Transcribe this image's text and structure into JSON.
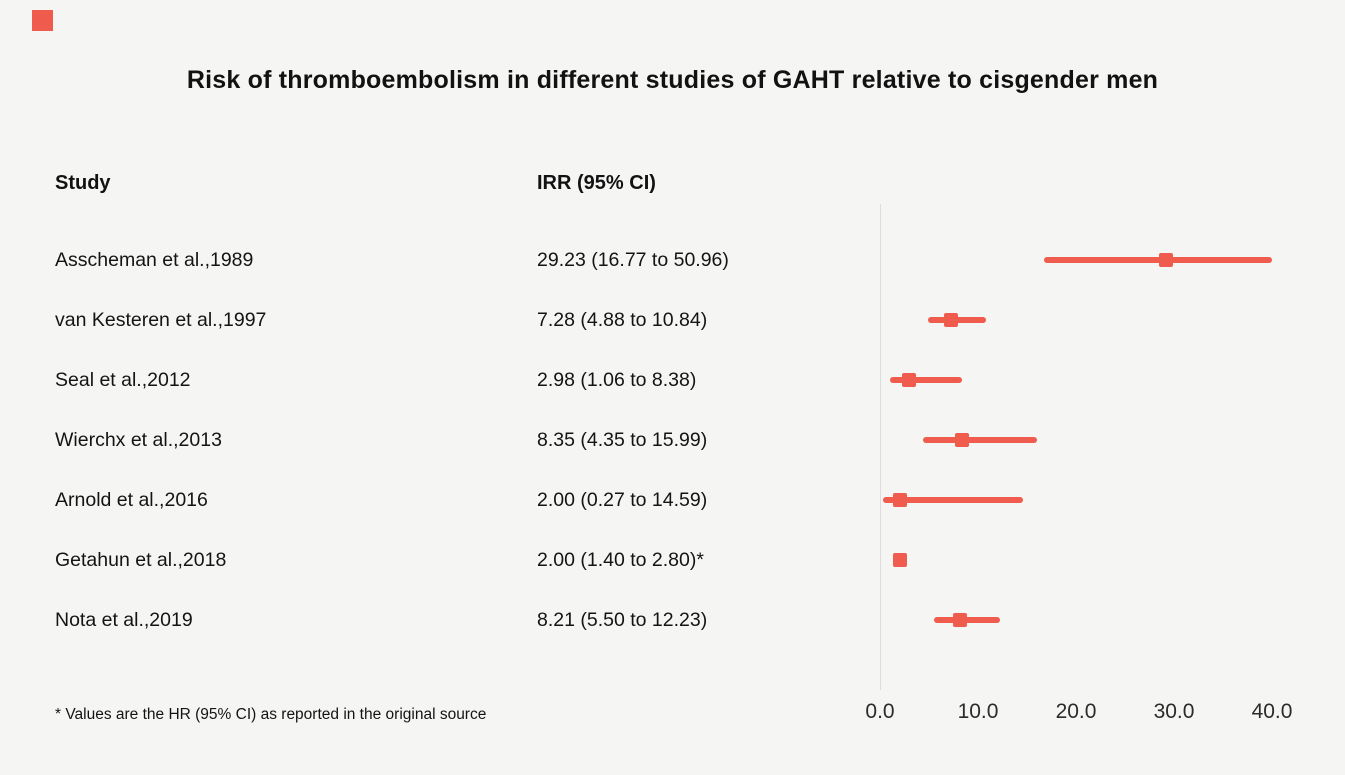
{
  "logo": {
    "color": "#ef5b4c"
  },
  "title": "Risk of thromboembolism in different studies of GAHT relative to cisgender men",
  "table": {
    "study_header": "Study",
    "irr_header": "IRR (95% CI)"
  },
  "footnote": "* Values are the HR (95% CI) as reported in the original source",
  "chart_data": {
    "type": "scatter",
    "subtype": "forest-plot",
    "title": "Risk of thromboembolism in different studies of GAHT relative to cisgender men",
    "xlabel": "",
    "ylabel": "",
    "xlim": [
      0,
      40
    ],
    "x_ticks": [
      0,
      10,
      20,
      30,
      40
    ],
    "x_tick_labels": [
      "0.0",
      "10.0",
      "20.0",
      "30.0",
      "40.0"
    ],
    "grid": false,
    "marker_color": "#ef5b4c",
    "axis_line_color": "#dddddc",
    "rows": [
      {
        "study": "Asscheman et al.,1989",
        "irr_label": "29.23 (16.77 to 50.96)",
        "irr": 29.23,
        "ci_low": 16.77,
        "ci_high": 50.96
      },
      {
        "study": "van Kesteren et al.,1997",
        "irr_label": "7.28 (4.88 to 10.84)",
        "irr": 7.28,
        "ci_low": 4.88,
        "ci_high": 10.84
      },
      {
        "study": "Seal et al.,2012",
        "irr_label": "2.98 (1.06 to 8.38)",
        "irr": 2.98,
        "ci_low": 1.06,
        "ci_high": 8.38
      },
      {
        "study": "Wierchx et al.,2013",
        "irr_label": "8.35 (4.35 to 15.99)",
        "irr": 8.35,
        "ci_low": 4.35,
        "ci_high": 15.99
      },
      {
        "study": "Arnold et al.,2016",
        "irr_label": "2.00 (0.27 to 14.59)",
        "irr": 2.0,
        "ci_low": 0.27,
        "ci_high": 14.59
      },
      {
        "study": "Getahun et al.,2018",
        "irr_label": "2.00 (1.40 to 2.80)*",
        "irr": 2.0,
        "ci_low": 1.4,
        "ci_high": 2.8
      },
      {
        "study": "Nota et al.,2019",
        "irr_label": "8.21 (5.50 to 12.23)",
        "irr": 8.21,
        "ci_low": 5.5,
        "ci_high": 12.23
      }
    ]
  }
}
